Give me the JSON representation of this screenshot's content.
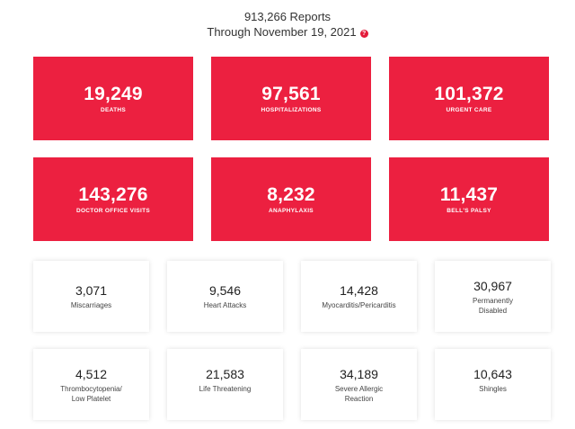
{
  "header": {
    "reports": "913,266 Reports",
    "through": "Through November 19, 2021",
    "help_icon": "question-mark-icon",
    "help_glyph": "?"
  },
  "colors": {
    "accent_red": "#ec2040",
    "text_dark": "#333333"
  },
  "primary_stats": [
    {
      "value": "19,249",
      "label": "DEATHS"
    },
    {
      "value": "97,561",
      "label": "HOSPITALIZATIONS"
    },
    {
      "value": "101,372",
      "label": "URGENT CARE"
    },
    {
      "value": "143,276",
      "label": "DOCTOR OFFICE VISITS"
    },
    {
      "value": "8,232",
      "label": "ANAPHYLAXIS"
    },
    {
      "value": "11,437",
      "label": "BELL'S PALSY"
    }
  ],
  "secondary_stats": [
    {
      "value": "3,071",
      "label": "Miscarriages"
    },
    {
      "value": "9,546",
      "label": "Heart Attacks"
    },
    {
      "value": "14,428",
      "label": "Myocarditis/Pericarditis"
    },
    {
      "value": "30,967",
      "label": "Permanently\nDisabled"
    },
    {
      "value": "4,512",
      "label": "Thrombocytopenia/\nLow Platelet"
    },
    {
      "value": "21,583",
      "label": "Life Threatening"
    },
    {
      "value": "34,189",
      "label": "Severe Allergic\nReaction"
    },
    {
      "value": "10,643",
      "label": "Shingles"
    }
  ]
}
